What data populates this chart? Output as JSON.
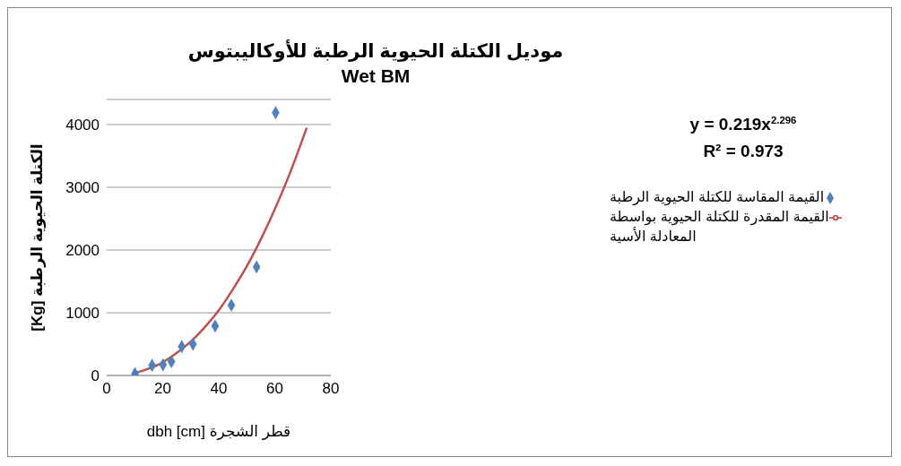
{
  "chart_data": {
    "type": "scatter",
    "title": "موديل الكتلة الحيوية الرطبة للأوكاليبتوس",
    "subtitle": "Wet BM",
    "xlabel": "قطر الشجرة dbh [cm]",
    "ylabel": "الكتلة الحيوية الرطبة [Kg]",
    "annotations": [
      "y = 0.219x$^{2.296}$",
      "R² = 0.973"
    ],
    "series": [
      {
        "name": "القيمة المقدرة للكتلة الحيوية بواسطة المعادلة الأسية",
        "type": "line",
        "color": "#c0504d",
        "x": [
          10,
          15,
          20,
          25,
          30,
          35,
          40,
          45,
          50,
          55,
          60,
          65,
          71.4
        ],
        "values": [
          40,
          110,
          210,
          360,
          540,
          770,
          1040,
          1370,
          1740,
          2170,
          2650,
          3180,
          3950
        ]
      },
      {
        "name": "القيمة المقاسة للكتلة الحيوية الرطبة",
        "type": "scatter",
        "color": "#4f81bd",
        "marker": "diamond",
        "x": [
          10.1,
          16.2,
          20.1,
          23.1,
          26.8,
          30.8,
          38.7,
          44.5,
          53.5,
          60.3
        ],
        "values": [
          30,
          160,
          170,
          220,
          460,
          500,
          790,
          1120,
          1730,
          4190
        ]
      }
    ],
    "xlim": [
      0,
      80
    ],
    "xticks": [
      0,
      20,
      40,
      60,
      80
    ],
    "ylim": [
      0,
      4400
    ],
    "yticks": [
      0,
      1000,
      2000,
      3000,
      4000
    ],
    "grid": "y",
    "legend": "right"
  }
}
